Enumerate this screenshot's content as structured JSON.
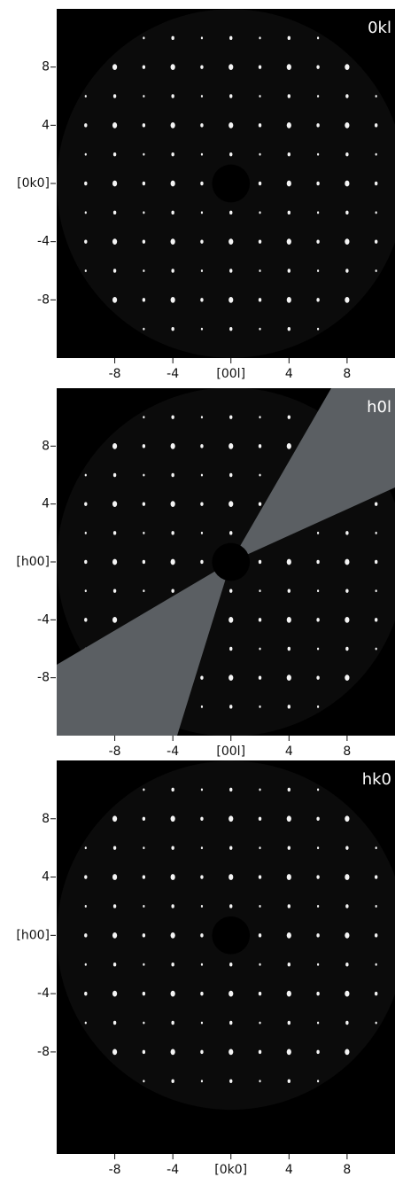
{
  "chart_data": [
    {
      "type": "diffraction",
      "title": "0kl",
      "xlim": [
        -12,
        11.3
      ],
      "ylim": [
        -12,
        12
      ],
      "xticks": [
        -8,
        -4,
        {
          "value": 0,
          "label": "[00l]"
        },
        4,
        8
      ],
      "yticks": [
        8,
        4,
        {
          "value": 0,
          "label": "[0k0]"
        },
        -4,
        -8
      ]
    },
    {
      "type": "diffraction",
      "title": "h0l",
      "xlim": [
        -12,
        11.3
      ],
      "ylim": [
        -12,
        12
      ],
      "xticks": [
        -8,
        -4,
        {
          "value": 0,
          "label": "[00l]"
        },
        4,
        8
      ],
      "yticks": [
        8,
        4,
        {
          "value": 0,
          "label": "[h00]"
        },
        -4,
        -8
      ]
    },
    {
      "type": "diffraction",
      "title": "hk0",
      "xlim": [
        -12,
        11.3
      ],
      "ylim": [
        -15,
        12
      ],
      "xticks": [
        -8,
        -4,
        {
          "value": 0,
          "label": "[0k0]"
        },
        4,
        8
      ],
      "yticks": [
        8,
        4,
        {
          "value": 0,
          "label": "[h00]"
        },
        -4,
        -8
      ]
    }
  ]
}
